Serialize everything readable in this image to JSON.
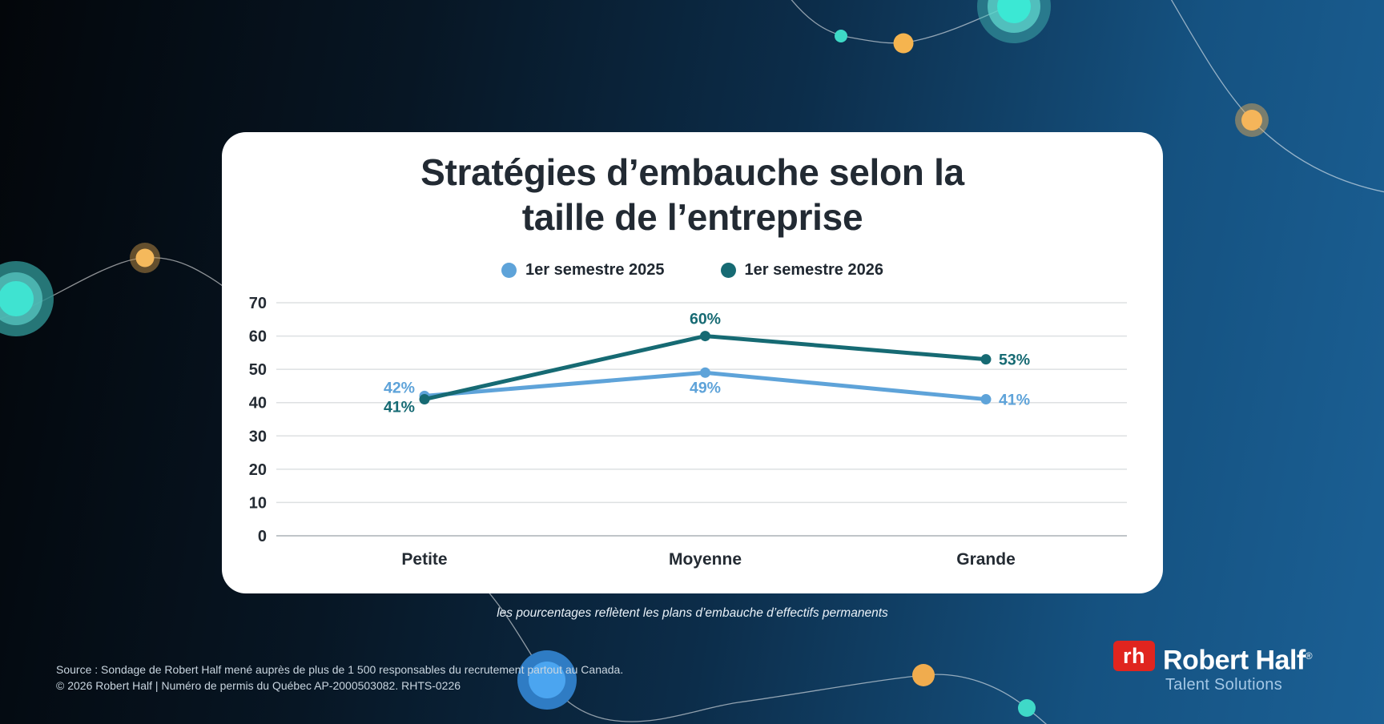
{
  "header": {
    "title_line1": "Stratégies d’embauche selon la",
    "title_line2": "taille de l’entreprise"
  },
  "chart_data": {
    "type": "line",
    "title": "Stratégies d’embauche selon la taille de l’entreprise",
    "categories": [
      "Petite",
      "Moyenne",
      "Grande"
    ],
    "series": [
      {
        "name": "1er semestre 2025",
        "color": "#5ea3d9",
        "values": [
          42,
          49,
          41
        ],
        "labels": [
          "42%",
          "49%",
          "41%"
        ],
        "label_pos": [
          {
            "anchor": "end",
            "dx": -12,
            "dy": -4
          },
          {
            "anchor": "middle",
            "dx": 0,
            "dy": 25
          },
          {
            "anchor": "start",
            "dx": 16,
            "dy": 7
          }
        ]
      },
      {
        "name": "1er semestre 2026",
        "color": "#166a73",
        "values": [
          41,
          60,
          53
        ],
        "labels": [
          "41%",
          "60%",
          "53%"
        ],
        "label_pos": [
          {
            "anchor": "end",
            "dx": -12,
            "dy": 16
          },
          {
            "anchor": "middle",
            "dx": 0,
            "dy": -15
          },
          {
            "anchor": "start",
            "dx": 16,
            "dy": 7
          }
        ]
      }
    ],
    "yticks": [
      0,
      10,
      20,
      30,
      40,
      50,
      60,
      70
    ],
    "ylim": [
      0,
      70
    ],
    "grid": true,
    "legend_position": "top"
  },
  "footnote": "les pourcentages reflètent les plans d’embauche d’effectifs permanents",
  "source": {
    "line1": "Source : Sondage de Robert Half mené auprès de plus de 1 500 responsables du recrutement partout au Canada.",
    "line2": "© 2026 Robert Half | Numéro de permis du Québec AP-2000503082. RHTS-0226"
  },
  "logo": {
    "monogram": "rh",
    "brand": "Robert Half",
    "registered": "®",
    "tagline": "Talent Solutions",
    "brand_red": "#e0251f"
  },
  "decor_colors": {
    "teal_bright": "#3be8d4",
    "teal_dot": "#3ed9c6",
    "orange_dot": "#f5b44f",
    "blue_circle_inner": "#4ba5f0",
    "line_white": "rgba(255,255,255,0.55)"
  }
}
